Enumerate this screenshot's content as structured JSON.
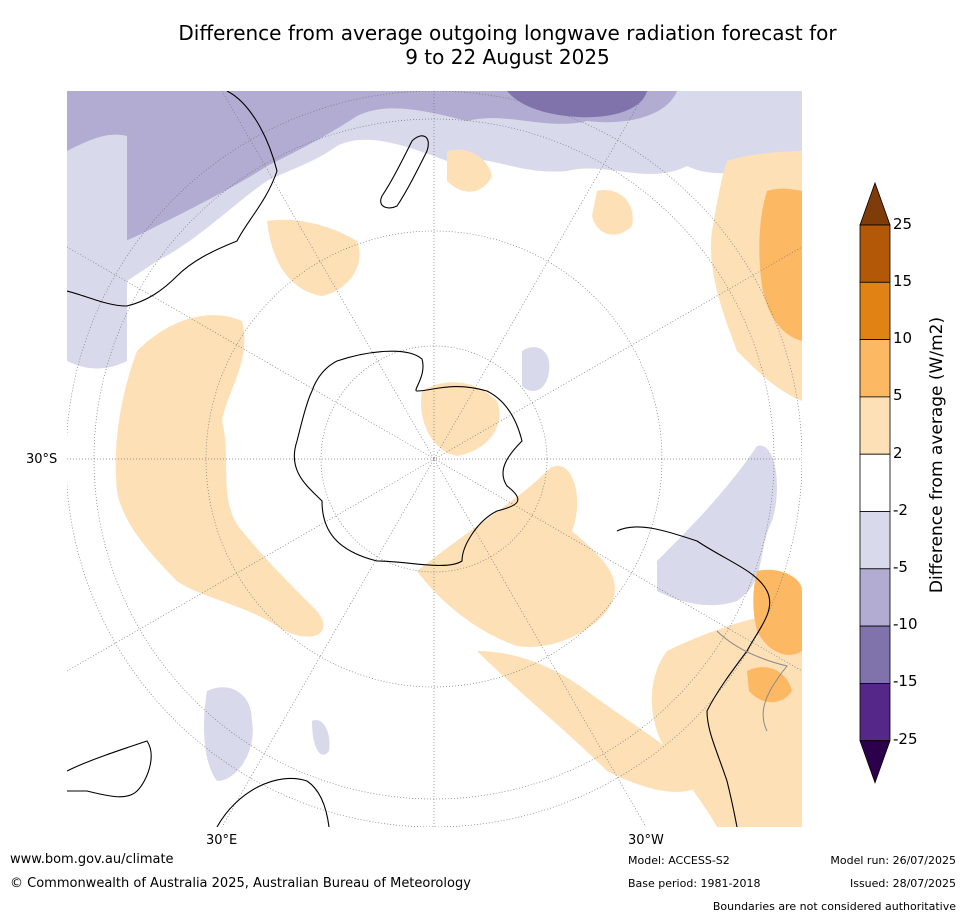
{
  "title": {
    "line1": "Difference from average outgoing longwave radiation forecast for",
    "line2": "9 to 22 August 2025"
  },
  "map": {
    "projection": "south-polar-stereographic",
    "labels": {
      "lat_30s": "30°S",
      "lon_30e": "30°E",
      "lon_30w": "30°W"
    }
  },
  "colorbar": {
    "title": "Difference from average (W/m2)",
    "ticks": [
      "25",
      "15",
      "10",
      "5",
      "2",
      "-2",
      "-5",
      "-10",
      "-15",
      "-25"
    ],
    "colors": [
      "#7f3b08",
      "#b35806",
      "#e08214",
      "#fdb863",
      "#fee0b6",
      "#ffffff",
      "#d8daeb",
      "#b2abd2",
      "#8073ac",
      "#542788",
      "#2d004b"
    ]
  },
  "footer": {
    "website": "www.bom.gov.au/climate",
    "copyright": "© Commonwealth of Australia 2025, Australian Bureau of Meteorology",
    "model": "Model: ACCESS-S2",
    "base_period": "Base period: 1981-2018",
    "model_run": "Model run: 26/07/2025",
    "issued": "Issued: 28/07/2025",
    "disclaimer": "Boundaries are not considered authoritative"
  }
}
